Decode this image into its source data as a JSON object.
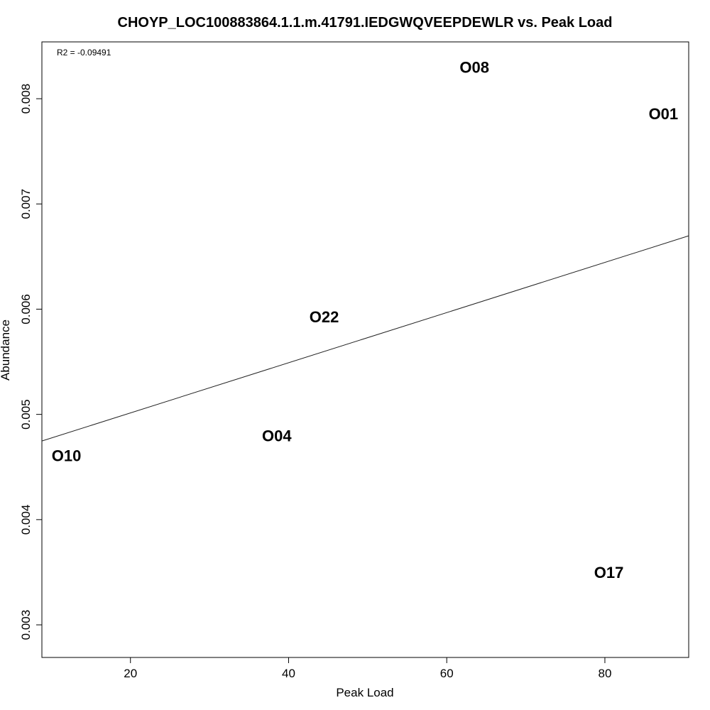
{
  "chart_data": {
    "type": "scatter",
    "title": "CHOYP_LOC100883864.1.1.m.41791.IEDGWQVEEPDEWLR vs. Peak Load",
    "xlabel": "Peak Load",
    "ylabel": "Abundance",
    "annotation": "R2 = -0.09491",
    "xlim": [
      8.8,
      90.6
    ],
    "ylim": [
      0.00269,
      0.00854
    ],
    "xticks": [
      20,
      40,
      60,
      80
    ],
    "xtick_labels": [
      "20",
      "40",
      "60",
      "80"
    ],
    "yticks": [
      0.003,
      0.004,
      0.005,
      0.006,
      0.007,
      0.008
    ],
    "ytick_labels": [
      "0.003",
      "0.004",
      "0.005",
      "0.006",
      "0.007",
      "0.008"
    ],
    "points": [
      {
        "label": "O08",
        "x": 63.5,
        "y": 0.0083
      },
      {
        "label": "O01",
        "x": 87.4,
        "y": 0.00786
      },
      {
        "label": "O22",
        "x": 44.5,
        "y": 0.00593
      },
      {
        "label": "O04",
        "x": 38.5,
        "y": 0.0048
      },
      {
        "label": "O10",
        "x": 11.9,
        "y": 0.00461
      },
      {
        "label": "O17",
        "x": 80.5,
        "y": 0.0035
      }
    ],
    "fit_line": {
      "x": [
        8.8,
        90.6
      ],
      "y": [
        0.004747,
        0.006697
      ]
    },
    "grid": false,
    "legend": "none"
  }
}
